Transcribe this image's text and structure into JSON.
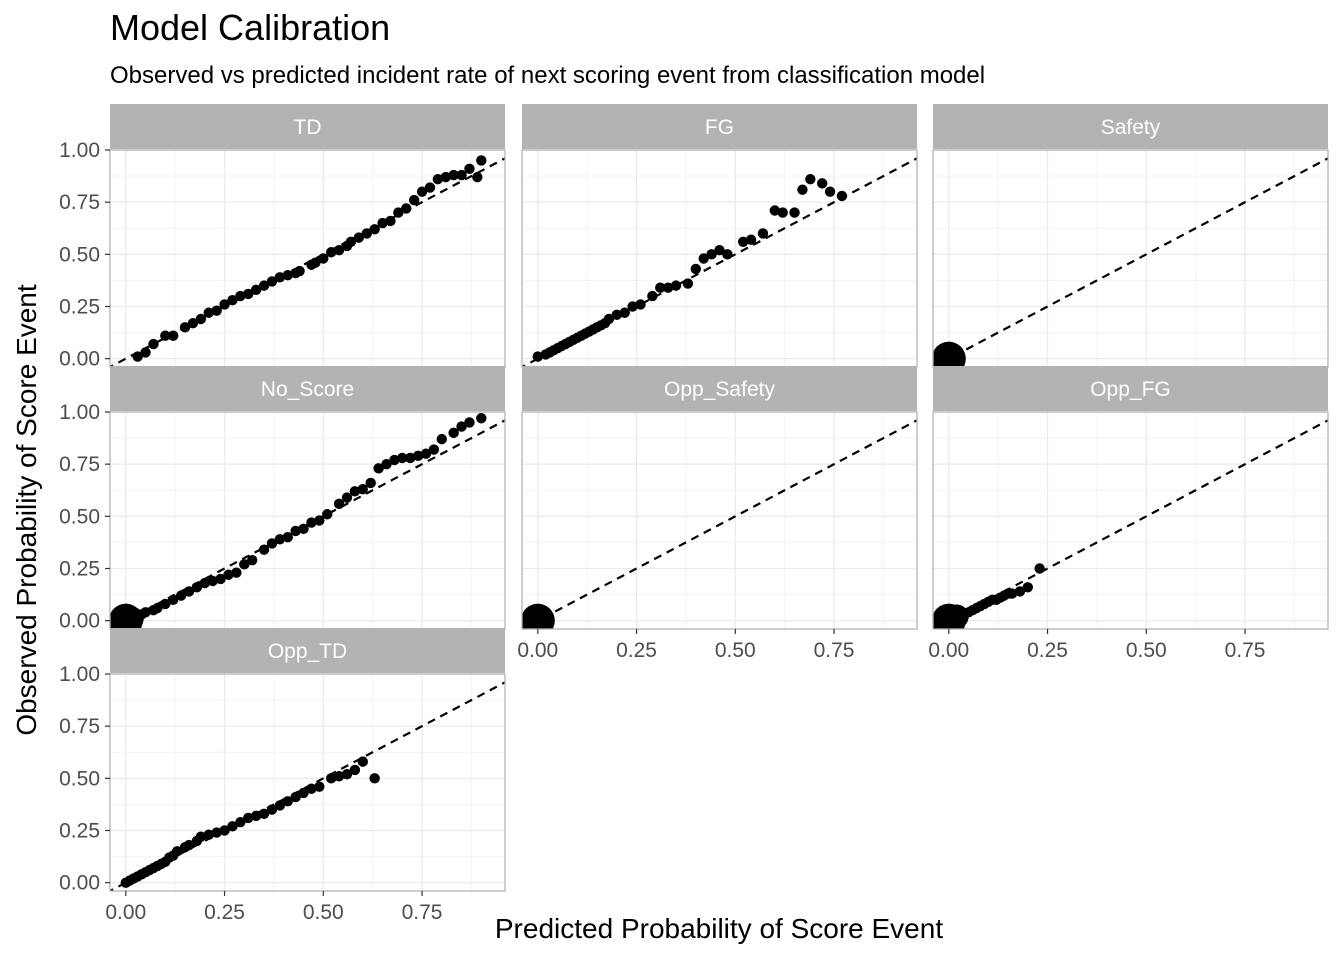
{
  "chart_data": {
    "type": "scatter",
    "title": "Model Calibration",
    "subtitle": "Observed vs predicted incident rate of next scoring event from classification model",
    "xlabel": "Predicted Probability of Score Event",
    "ylabel": "Observed Probability of Score Event",
    "xlim": [
      -0.04,
      0.96
    ],
    "ylim": [
      -0.04,
      1.0
    ],
    "x_ticks": [
      "0.00",
      "0.25",
      "0.50",
      "0.75"
    ],
    "y_ticks": [
      "0.00",
      "0.25",
      "0.50",
      "0.75",
      "1.00"
    ],
    "reference_line": "y = x (dashed)",
    "grid": true,
    "colors": {
      "points": "#000000",
      "strip_fill": "#b3b3b3",
      "strip_text": "#ffffff",
      "grid": "#ebebeb",
      "panel_border": "#b3b3b3",
      "tick_text": "#4d4d4d"
    },
    "panels": [
      {
        "name": "TD",
        "points": [
          [
            0.03,
            0.01
          ],
          [
            0.05,
            0.03
          ],
          [
            0.07,
            0.07
          ],
          [
            0.1,
            0.11
          ],
          [
            0.12,
            0.11
          ],
          [
            0.15,
            0.15
          ],
          [
            0.17,
            0.17
          ],
          [
            0.19,
            0.19
          ],
          [
            0.21,
            0.22
          ],
          [
            0.23,
            0.23
          ],
          [
            0.25,
            0.26
          ],
          [
            0.27,
            0.28
          ],
          [
            0.29,
            0.3
          ],
          [
            0.31,
            0.31
          ],
          [
            0.33,
            0.33
          ],
          [
            0.35,
            0.35
          ],
          [
            0.37,
            0.37
          ],
          [
            0.39,
            0.39
          ],
          [
            0.41,
            0.4
          ],
          [
            0.43,
            0.41
          ],
          [
            0.44,
            0.42
          ],
          [
            0.47,
            0.45
          ],
          [
            0.48,
            0.46
          ],
          [
            0.5,
            0.48
          ],
          [
            0.52,
            0.51
          ],
          [
            0.54,
            0.52
          ],
          [
            0.56,
            0.54
          ],
          [
            0.57,
            0.56
          ],
          [
            0.59,
            0.58
          ],
          [
            0.61,
            0.6
          ],
          [
            0.63,
            0.62
          ],
          [
            0.65,
            0.65
          ],
          [
            0.67,
            0.66
          ],
          [
            0.69,
            0.7
          ],
          [
            0.71,
            0.72
          ],
          [
            0.73,
            0.76
          ],
          [
            0.75,
            0.8
          ],
          [
            0.77,
            0.82
          ],
          [
            0.79,
            0.86
          ],
          [
            0.81,
            0.87
          ],
          [
            0.83,
            0.88
          ],
          [
            0.85,
            0.88
          ],
          [
            0.87,
            0.91
          ],
          [
            0.89,
            0.87
          ],
          [
            0.9,
            0.95
          ]
        ],
        "sizes": [],
        "big_points": []
      },
      {
        "name": "FG",
        "points": [
          [
            0.0,
            0.01
          ],
          [
            0.02,
            0.02
          ],
          [
            0.03,
            0.03
          ],
          [
            0.04,
            0.04
          ],
          [
            0.05,
            0.05
          ],
          [
            0.06,
            0.06
          ],
          [
            0.07,
            0.07
          ],
          [
            0.08,
            0.08
          ],
          [
            0.09,
            0.09
          ],
          [
            0.1,
            0.1
          ],
          [
            0.11,
            0.11
          ],
          [
            0.12,
            0.12
          ],
          [
            0.13,
            0.13
          ],
          [
            0.14,
            0.14
          ],
          [
            0.15,
            0.15
          ],
          [
            0.16,
            0.16
          ],
          [
            0.17,
            0.17
          ],
          [
            0.18,
            0.19
          ],
          [
            0.2,
            0.21
          ],
          [
            0.22,
            0.22
          ],
          [
            0.24,
            0.25
          ],
          [
            0.26,
            0.26
          ],
          [
            0.29,
            0.3
          ],
          [
            0.31,
            0.34
          ],
          [
            0.33,
            0.34
          ],
          [
            0.35,
            0.35
          ],
          [
            0.38,
            0.36
          ],
          [
            0.4,
            0.43
          ],
          [
            0.42,
            0.48
          ],
          [
            0.44,
            0.5
          ],
          [
            0.46,
            0.52
          ],
          [
            0.48,
            0.5
          ],
          [
            0.52,
            0.56
          ],
          [
            0.54,
            0.57
          ],
          [
            0.57,
            0.6
          ],
          [
            0.6,
            0.71
          ],
          [
            0.62,
            0.7
          ],
          [
            0.65,
            0.7
          ],
          [
            0.67,
            0.81
          ],
          [
            0.69,
            0.86
          ],
          [
            0.72,
            0.84
          ],
          [
            0.74,
            0.8
          ],
          [
            0.77,
            0.78
          ]
        ],
        "sizes": [],
        "big_points": []
      },
      {
        "name": "Safety",
        "points": [],
        "big_points": [
          [
            0.0,
            0.0
          ]
        ]
      },
      {
        "name": "No_Score",
        "points": [
          [
            0.02,
            0.01
          ],
          [
            0.03,
            0.02
          ],
          [
            0.04,
            0.03
          ],
          [
            0.05,
            0.04
          ],
          [
            0.07,
            0.05
          ],
          [
            0.08,
            0.06
          ],
          [
            0.1,
            0.08
          ],
          [
            0.12,
            0.1
          ],
          [
            0.14,
            0.12
          ],
          [
            0.16,
            0.14
          ],
          [
            0.18,
            0.16
          ],
          [
            0.2,
            0.18
          ],
          [
            0.22,
            0.19
          ],
          [
            0.24,
            0.2
          ],
          [
            0.26,
            0.22
          ],
          [
            0.28,
            0.23
          ],
          [
            0.3,
            0.27
          ],
          [
            0.32,
            0.29
          ],
          [
            0.35,
            0.34
          ],
          [
            0.37,
            0.37
          ],
          [
            0.39,
            0.39
          ],
          [
            0.41,
            0.4
          ],
          [
            0.43,
            0.43
          ],
          [
            0.45,
            0.44
          ],
          [
            0.47,
            0.47
          ],
          [
            0.49,
            0.48
          ],
          [
            0.51,
            0.51
          ],
          [
            0.54,
            0.56
          ],
          [
            0.56,
            0.59
          ],
          [
            0.58,
            0.62
          ],
          [
            0.6,
            0.63
          ],
          [
            0.62,
            0.66
          ],
          [
            0.64,
            0.73
          ],
          [
            0.66,
            0.75
          ],
          [
            0.68,
            0.77
          ],
          [
            0.7,
            0.78
          ],
          [
            0.72,
            0.78
          ],
          [
            0.74,
            0.79
          ],
          [
            0.76,
            0.8
          ],
          [
            0.78,
            0.82
          ],
          [
            0.8,
            0.87
          ],
          [
            0.83,
            0.9
          ],
          [
            0.85,
            0.93
          ],
          [
            0.87,
            0.95
          ],
          [
            0.9,
            0.97
          ]
        ],
        "big_points": [
          [
            0.0,
            0.0
          ],
          [
            0.015,
            0.01
          ]
        ]
      },
      {
        "name": "Opp_Safety",
        "points": [],
        "big_points": [
          [
            0.0,
            0.0
          ]
        ]
      },
      {
        "name": "Opp_FG",
        "points": [
          [
            0.01,
            0.01
          ],
          [
            0.02,
            0.01
          ],
          [
            0.03,
            0.02
          ],
          [
            0.04,
            0.03
          ],
          [
            0.05,
            0.04
          ],
          [
            0.06,
            0.05
          ],
          [
            0.07,
            0.06
          ],
          [
            0.08,
            0.07
          ],
          [
            0.09,
            0.08
          ],
          [
            0.1,
            0.09
          ],
          [
            0.11,
            0.1
          ],
          [
            0.12,
            0.1
          ],
          [
            0.13,
            0.11
          ],
          [
            0.14,
            0.12
          ],
          [
            0.15,
            0.13
          ],
          [
            0.16,
            0.13
          ],
          [
            0.18,
            0.14
          ],
          [
            0.2,
            0.16
          ],
          [
            0.23,
            0.25
          ]
        ],
        "big_points": [
          [
            0.0,
            0.0
          ],
          [
            0.02,
            0.02
          ]
        ]
      },
      {
        "name": "Opp_TD",
        "points": [
          [
            0.0,
            0.0
          ],
          [
            0.01,
            0.01
          ],
          [
            0.02,
            0.02
          ],
          [
            0.03,
            0.03
          ],
          [
            0.04,
            0.04
          ],
          [
            0.05,
            0.05
          ],
          [
            0.06,
            0.06
          ],
          [
            0.07,
            0.07
          ],
          [
            0.08,
            0.08
          ],
          [
            0.09,
            0.09
          ],
          [
            0.1,
            0.1
          ],
          [
            0.11,
            0.12
          ],
          [
            0.12,
            0.13
          ],
          [
            0.13,
            0.15
          ],
          [
            0.15,
            0.17
          ],
          [
            0.16,
            0.18
          ],
          [
            0.18,
            0.2
          ],
          [
            0.19,
            0.22
          ],
          [
            0.21,
            0.23
          ],
          [
            0.23,
            0.24
          ],
          [
            0.25,
            0.25
          ],
          [
            0.27,
            0.27
          ],
          [
            0.29,
            0.29
          ],
          [
            0.31,
            0.31
          ],
          [
            0.33,
            0.32
          ],
          [
            0.35,
            0.33
          ],
          [
            0.37,
            0.35
          ],
          [
            0.39,
            0.37
          ],
          [
            0.41,
            0.39
          ],
          [
            0.43,
            0.41
          ],
          [
            0.45,
            0.43
          ],
          [
            0.47,
            0.45
          ],
          [
            0.49,
            0.46
          ],
          [
            0.52,
            0.5
          ],
          [
            0.54,
            0.51
          ],
          [
            0.56,
            0.52
          ],
          [
            0.58,
            0.54
          ],
          [
            0.6,
            0.58
          ],
          [
            0.63,
            0.5
          ]
        ],
        "big_points": []
      }
    ]
  }
}
